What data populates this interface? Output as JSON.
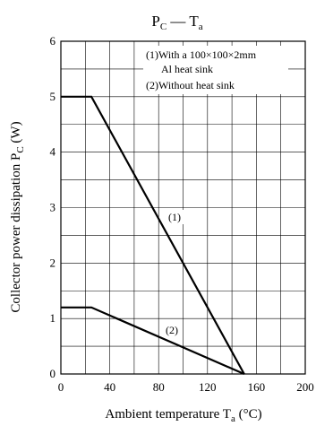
{
  "chart_data": {
    "type": "line",
    "title": {
      "main": "P",
      "main_sub": "C",
      "sep": " — ",
      "var": "T",
      "var_sub": "a"
    },
    "xlabel": {
      "text": "Ambient temperature  T",
      "sub": "a",
      "unit": "  (°C)"
    },
    "ylabel": {
      "text": "Collector power dissipation  P",
      "sub": "C",
      "unit": "  (W)"
    },
    "xlim": [
      0,
      200
    ],
    "ylim": [
      0,
      6
    ],
    "x_ticks": [
      "0",
      "40",
      "80",
      "120",
      "160",
      "200"
    ],
    "y_ticks": [
      "0",
      "1",
      "2",
      "3",
      "4",
      "5",
      "6"
    ],
    "grid": true,
    "legend": {
      "line1": "(1)With a 100×100×2mm",
      "line2": "Al heat sink",
      "line3": "(2)Without heat sink"
    },
    "series": [
      {
        "name": "(1)",
        "x": [
          0,
          25,
          150
        ],
        "y": [
          5,
          5,
          0
        ]
      },
      {
        "name": "(2)",
        "x": [
          0,
          25,
          150
        ],
        "y": [
          1.2,
          1.2,
          0
        ]
      }
    ]
  }
}
